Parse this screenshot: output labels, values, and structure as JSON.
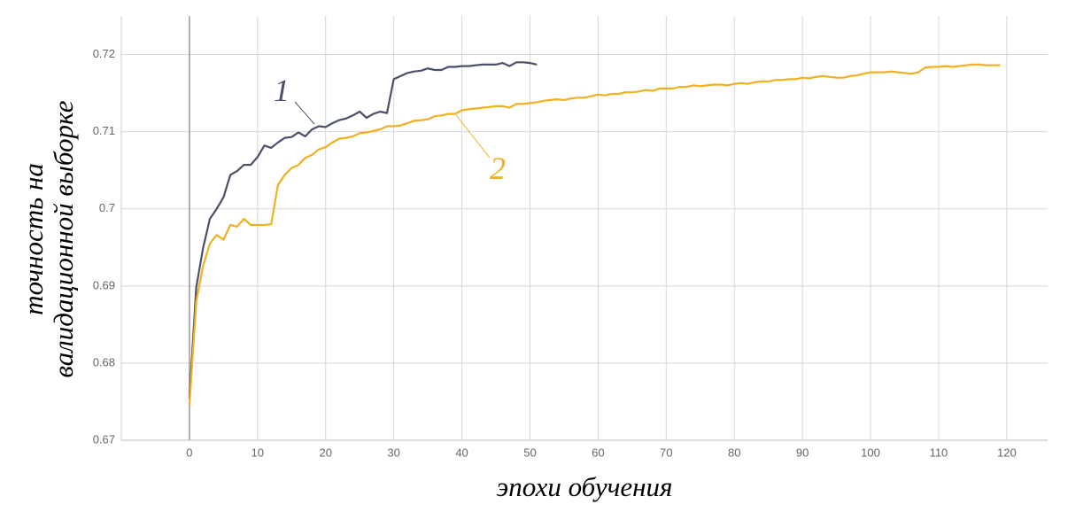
{
  "chart_data": {
    "type": "line",
    "xlabel": "эпохи обучения",
    "ylabel": [
      "точность на",
      "валидационной выборке"
    ],
    "xlim": [
      -10,
      126
    ],
    "ylim": [
      0.67,
      0.725
    ],
    "xticks": [
      0,
      10,
      20,
      30,
      40,
      50,
      60,
      70,
      80,
      90,
      100,
      110,
      120
    ],
    "yticks": [
      0.67,
      0.68,
      0.69,
      0.7,
      0.71,
      0.72
    ],
    "grid": true,
    "series": [
      {
        "name": "1",
        "color": "#4a5068",
        "x": [
          0,
          1,
          2,
          3,
          4,
          5,
          6,
          7,
          8,
          9,
          10,
          11,
          12,
          13,
          14,
          15,
          16,
          17,
          18,
          19,
          20,
          21,
          22,
          23,
          24,
          25,
          26,
          27,
          28,
          29,
          30,
          31,
          32,
          33,
          34,
          35,
          36,
          37,
          38,
          39,
          40,
          41,
          42,
          43,
          44,
          45,
          46,
          47,
          48,
          49,
          50,
          51
        ],
        "values": [
          0.6754,
          0.6898,
          0.6949,
          0.6987,
          0.7,
          0.7015,
          0.7044,
          0.7049,
          0.7057,
          0.7057,
          0.7067,
          0.7082,
          0.7079,
          0.7086,
          0.7092,
          0.7093,
          0.7099,
          0.7094,
          0.7103,
          0.7107,
          0.7106,
          0.7111,
          0.7115,
          0.7117,
          0.7121,
          0.7126,
          0.7118,
          0.7123,
          0.7126,
          0.7124,
          0.7168,
          0.7172,
          0.7176,
          0.7178,
          0.7179,
          0.7182,
          0.718,
          0.718,
          0.7184,
          0.7184,
          0.7185,
          0.7185,
          0.7186,
          0.7187,
          0.7187,
          0.7187,
          0.7189,
          0.7185,
          0.719,
          0.719,
          0.7189,
          0.7187
        ]
      },
      {
        "name": "2",
        "color": "#f0b020",
        "x": [
          0,
          1,
          2,
          3,
          4,
          5,
          6,
          7,
          8,
          9,
          10,
          11,
          12,
          13,
          14,
          15,
          16,
          17,
          18,
          19,
          20,
          21,
          22,
          23,
          24,
          25,
          26,
          27,
          28,
          29,
          30,
          31,
          32,
          33,
          34,
          35,
          36,
          37,
          38,
          39,
          40,
          41,
          42,
          43,
          44,
          45,
          46,
          47,
          48,
          49,
          50,
          51,
          52,
          53,
          54,
          55,
          56,
          57,
          58,
          59,
          60,
          61,
          62,
          63,
          64,
          65,
          66,
          67,
          68,
          69,
          70,
          71,
          72,
          73,
          74,
          75,
          76,
          77,
          78,
          79,
          80,
          81,
          82,
          83,
          84,
          85,
          86,
          87,
          88,
          89,
          90,
          91,
          92,
          93,
          94,
          95,
          96,
          97,
          98,
          99,
          100,
          101,
          102,
          103,
          104,
          105,
          106,
          107,
          108,
          109,
          110,
          111,
          112,
          113,
          114,
          115,
          116,
          117,
          118,
          119
        ],
        "values": [
          0.6745,
          0.688,
          0.6926,
          0.6955,
          0.6966,
          0.696,
          0.6979,
          0.6977,
          0.6987,
          0.6979,
          0.6979,
          0.6979,
          0.698,
          0.7031,
          0.7044,
          0.7053,
          0.7057,
          0.7066,
          0.707,
          0.7077,
          0.708,
          0.7086,
          0.7091,
          0.7092,
          0.7094,
          0.7098,
          0.7099,
          0.7101,
          0.7103,
          0.7107,
          0.7107,
          0.7108,
          0.7111,
          0.7114,
          0.7115,
          0.7116,
          0.712,
          0.7121,
          0.7123,
          0.7123,
          0.7128,
          0.7129,
          0.713,
          0.7131,
          0.7132,
          0.7133,
          0.7133,
          0.7131,
          0.7136,
          0.7136,
          0.7137,
          0.7138,
          0.714,
          0.7141,
          0.7142,
          0.7141,
          0.7143,
          0.7144,
          0.7144,
          0.7146,
          0.7148,
          0.7147,
          0.7149,
          0.7149,
          0.7151,
          0.7151,
          0.7152,
          0.7154,
          0.7153,
          0.7156,
          0.7156,
          0.7156,
          0.7158,
          0.7158,
          0.716,
          0.7159,
          0.716,
          0.7161,
          0.7161,
          0.716,
          0.7162,
          0.7163,
          0.7162,
          0.7164,
          0.7165,
          0.7165,
          0.7167,
          0.7167,
          0.7168,
          0.7168,
          0.717,
          0.7169,
          0.7171,
          0.7172,
          0.7171,
          0.717,
          0.717,
          0.7172,
          0.7173,
          0.7175,
          0.7177,
          0.7177,
          0.7177,
          0.7178,
          0.7177,
          0.7176,
          0.7175,
          0.7177,
          0.7183,
          0.7184,
          0.7184,
          0.7185,
          0.7184,
          0.7185,
          0.7186,
          0.7187,
          0.7187,
          0.7186,
          0.7186,
          0.7186
        ]
      }
    ]
  }
}
